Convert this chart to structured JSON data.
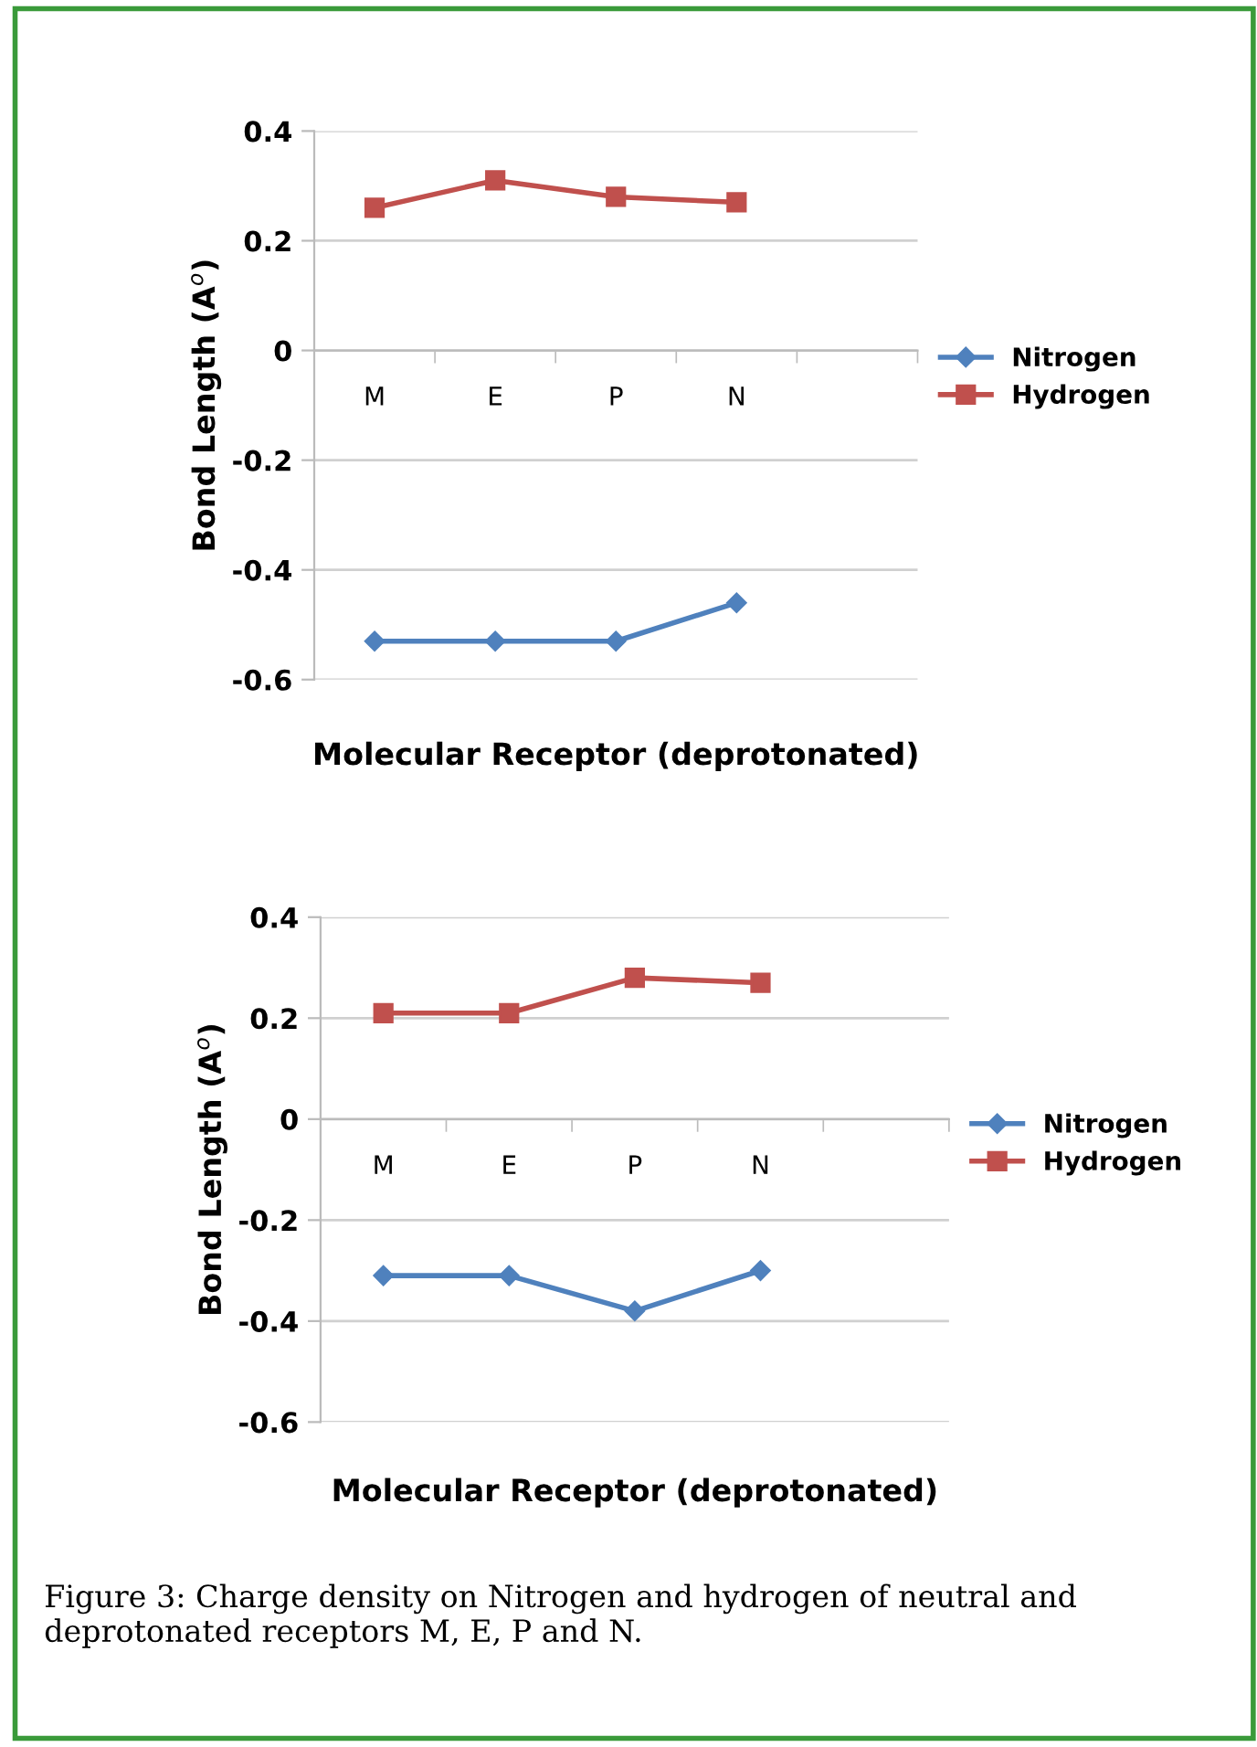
{
  "chart_data": [
    {
      "type": "line",
      "xlabel": "Molecular Receptor (deprotonated)",
      "ylabel": "Bond Length (A$^{o}$)",
      "categories": [
        "M",
        "E",
        "P",
        "N",
        null
      ],
      "series": [
        {
          "name": "Nitrogen",
          "color": "#4f81bd",
          "marker": "diamond",
          "values": [
            -0.53,
            -0.53,
            -0.53,
            -0.46,
            null
          ]
        },
        {
          "name": "Hydrogen",
          "color": "#c0504d",
          "marker": "square",
          "values": [
            0.26,
            0.31,
            0.28,
            0.27,
            null
          ]
        }
      ],
      "ylim": [
        -0.6,
        0.4
      ],
      "yticks": [
        -0.6,
        -0.4,
        -0.2,
        0,
        0.2,
        0.4
      ],
      "grid": "y",
      "legend": "right"
    },
    {
      "type": "line",
      "xlabel": "Molecular Receptor (deprotonated)",
      "ylabel": "Bond Length (A$^{o}$)",
      "categories": [
        "M",
        "E",
        "P",
        "N",
        null
      ],
      "series": [
        {
          "name": "Nitrogen",
          "color": "#4f81bd",
          "marker": "diamond",
          "values": [
            -0.31,
            -0.31,
            -0.38,
            -0.3,
            null
          ]
        },
        {
          "name": "Hydrogen",
          "color": "#c0504d",
          "marker": "square",
          "values": [
            0.21,
            0.21,
            0.28,
            0.27,
            null
          ]
        }
      ],
      "ylim": [
        -0.6,
        0.4
      ],
      "yticks": [
        -0.6,
        -0.4,
        -0.2,
        0,
        0.2,
        0.4
      ],
      "grid": "y",
      "legend": "right",
      "annotations": [
        "Figure 3: Charge density on Nitrogen and hydrogen of neutral and deprotonated receptors M, E, P and N."
      ]
    }
  ]
}
